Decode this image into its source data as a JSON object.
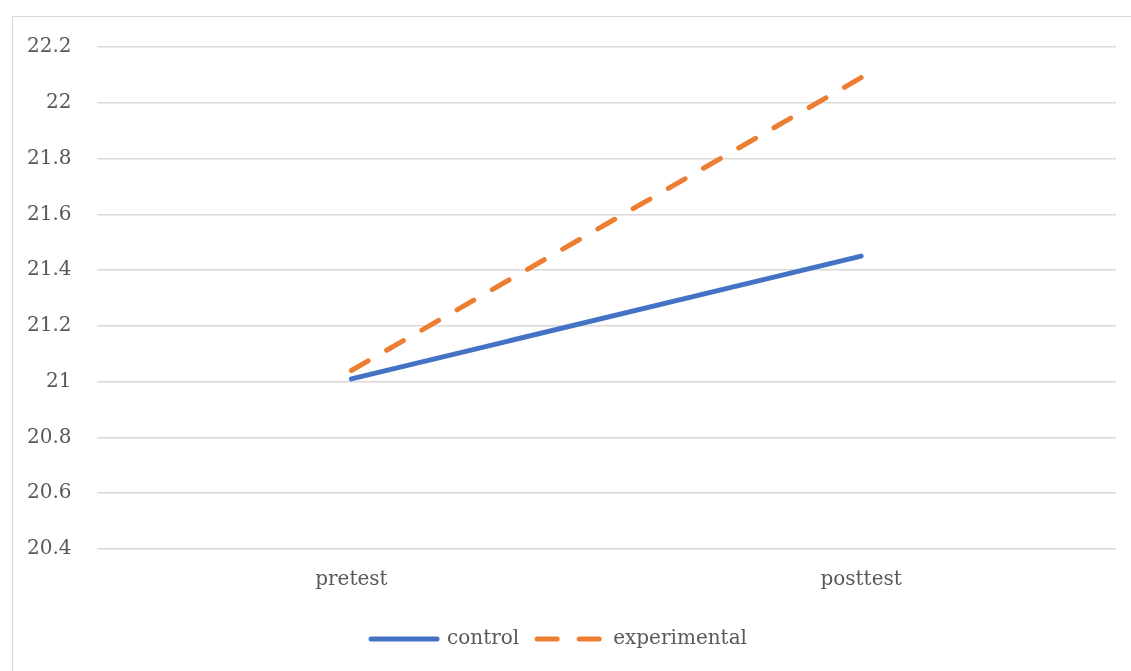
{
  "chart_data": {
    "type": "line",
    "categories": [
      "pretest",
      "posttest"
    ],
    "series": [
      {
        "name": "control",
        "color": "#4472c4",
        "values": [
          21.01,
          21.45
        ],
        "line_style": "solid"
      },
      {
        "name": "experimental",
        "color": "#ed7d31",
        "values": [
          21.04,
          22.09
        ],
        "line_style": "dashed"
      }
    ],
    "ylim": [
      20.4,
      22.2
    ],
    "yticks": [
      20.4,
      20.6,
      20.8,
      21,
      21.2,
      21.4,
      21.6,
      21.8,
      22,
      22.2
    ],
    "grid": "y",
    "legend": "bottom",
    "marker": "none"
  }
}
